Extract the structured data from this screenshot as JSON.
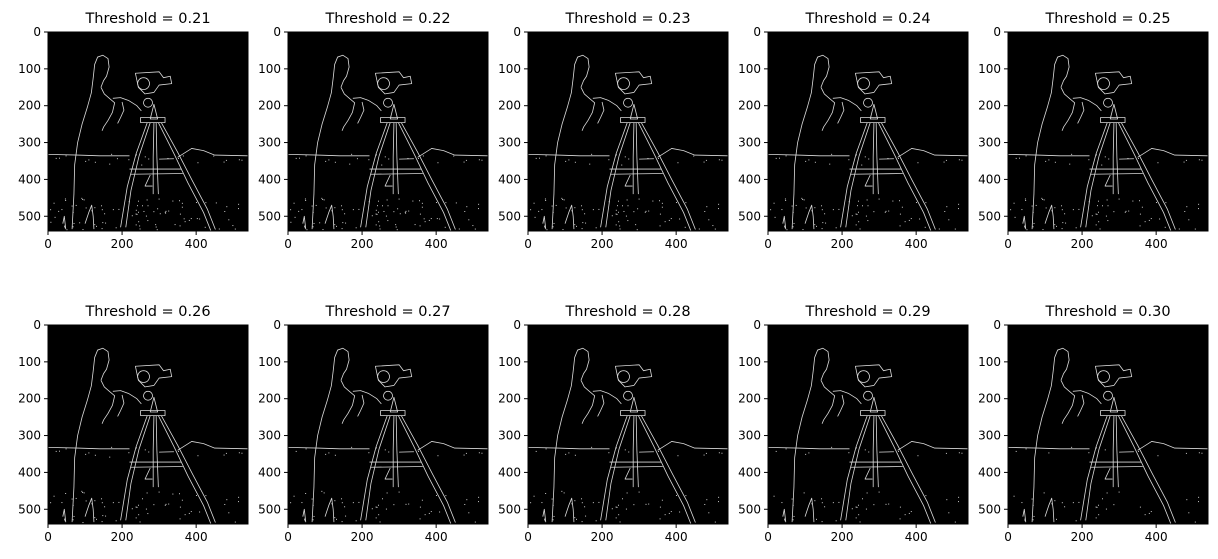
{
  "chart_data": {
    "type": "image",
    "grid": false,
    "xlim": [
      0,
      540
    ],
    "ylim": [
      540,
      0
    ],
    "xticks": [
      0,
      200,
      400
    ],
    "yticks": [
      0,
      100,
      200,
      300,
      400,
      500
    ],
    "panels": [
      {
        "title": "Threshold = 0.21",
        "threshold": 0.21
      },
      {
        "title": "Threshold = 0.22",
        "threshold": 0.22
      },
      {
        "title": "Threshold = 0.23",
        "threshold": 0.23
      },
      {
        "title": "Threshold = 0.24",
        "threshold": 0.24
      },
      {
        "title": "Threshold = 0.25",
        "threshold": 0.25
      },
      {
        "title": "Threshold = 0.26",
        "threshold": 0.26
      },
      {
        "title": "Threshold = 0.27",
        "threshold": 0.27
      },
      {
        "title": "Threshold = 0.28",
        "threshold": 0.28
      },
      {
        "title": "Threshold = 0.29",
        "threshold": 0.29
      },
      {
        "title": "Threshold = 0.30",
        "threshold": 0.3
      }
    ],
    "colors": {
      "image_background": "#000000",
      "edge": "#d9d9d9",
      "axis": "#000000"
    }
  }
}
